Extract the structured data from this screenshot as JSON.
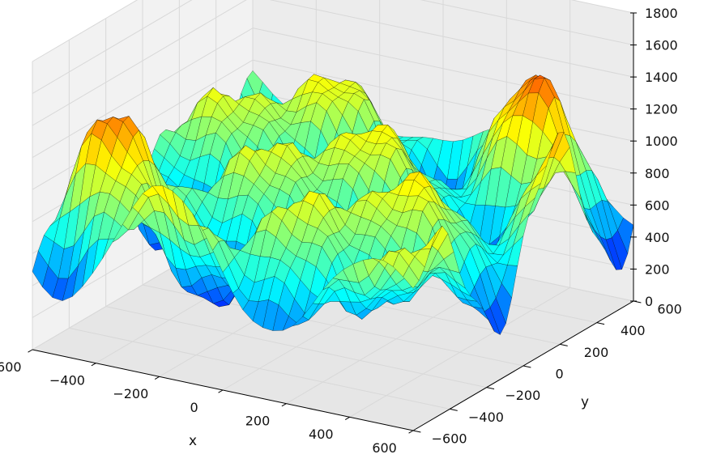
{
  "chart_data": {
    "type": "surface",
    "title": "",
    "xlabel": "x",
    "ylabel": "y",
    "zlabel": "",
    "xlim": [
      -600,
      600
    ],
    "ylim": [
      -600,
      600
    ],
    "zlim": [
      0,
      1800
    ],
    "x_ticks": [
      "−600",
      "−400",
      "−200",
      "0",
      "200",
      "400",
      "600"
    ],
    "y_ticks": [
      "−600",
      "−400",
      "−200",
      "0",
      "200",
      "400",
      "600"
    ],
    "z_ticks": [
      "0",
      "200",
      "400",
      "600",
      "800",
      "1000",
      "1200",
      "1400",
      "1600",
      "1800"
    ],
    "x_tick_values": [
      -600,
      -400,
      -200,
      0,
      200,
      400,
      600
    ],
    "y_tick_values": [
      -600,
      -400,
      -200,
      0,
      200,
      400,
      600
    ],
    "z_tick_values": [
      0,
      200,
      400,
      600,
      800,
      1000,
      1200,
      1400,
      1600,
      1800
    ],
    "grid": true,
    "colormap": "jet",
    "colormap_stops": [
      "#00007f",
      "#0000ff",
      "#007fff",
      "#00ffff",
      "#7fff7f",
      "#ffff00",
      "#ff7f00",
      "#ff0000",
      "#7f0000"
    ],
    "edge_color": "#000000"
  }
}
